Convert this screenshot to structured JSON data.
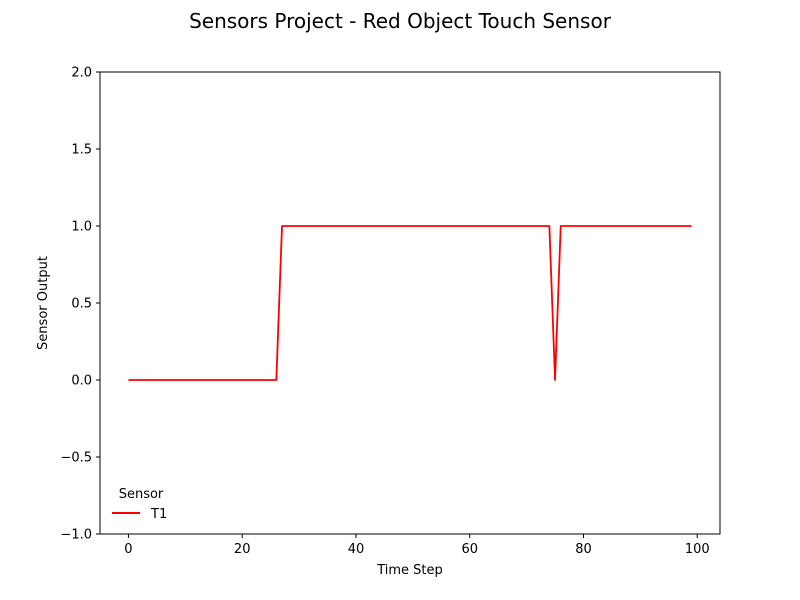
{
  "chart_data": {
    "type": "line",
    "title": "Sensors Project - Red Object Touch Sensor",
    "xlabel": "Time Step",
    "ylabel": "Sensor Output",
    "xlim": [
      -5,
      104
    ],
    "ylim": [
      -1.0,
      2.0
    ],
    "xticks": [
      0,
      20,
      40,
      60,
      80,
      100
    ],
    "xtick_labels": [
      "0",
      "20",
      "40",
      "60",
      "80",
      "100"
    ],
    "yticks": [
      -1.0,
      -0.5,
      0.0,
      0.5,
      1.0,
      1.5,
      2.0
    ],
    "ytick_labels": [
      "−1.0",
      "−0.5",
      "0.0",
      "0.5",
      "1.0",
      "1.5",
      "2.0"
    ],
    "grid": false,
    "legend": {
      "title": "Sensor",
      "position": "lower-left"
    },
    "series": [
      {
        "name": "T1",
        "color": "#ff0000",
        "x": [
          0,
          26,
          27,
          74,
          75,
          76,
          99
        ],
        "y": [
          0,
          0,
          1,
          1,
          0,
          1,
          1
        ]
      }
    ]
  }
}
